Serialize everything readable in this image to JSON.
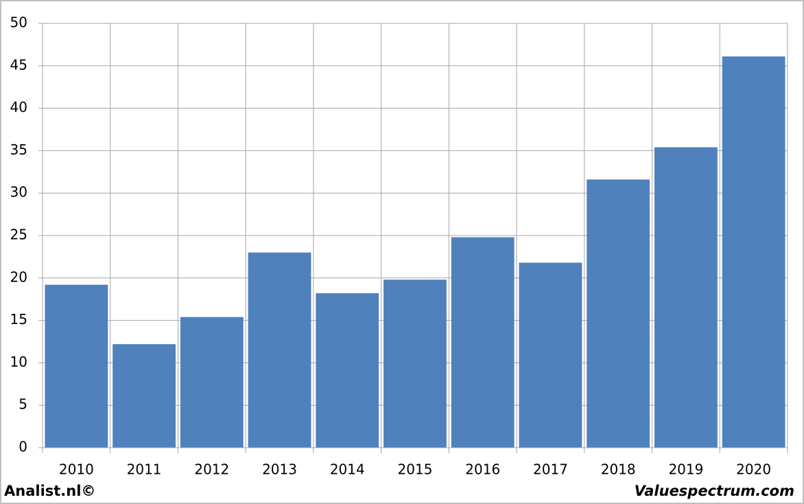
{
  "chart_data": {
    "type": "bar",
    "categories": [
      "2010",
      "2011",
      "2012",
      "2013",
      "2014",
      "2015",
      "2016",
      "2017",
      "2018",
      "2019",
      "2020"
    ],
    "values": [
      19.2,
      12.2,
      15.4,
      23.0,
      18.2,
      19.8,
      24.8,
      21.8,
      31.6,
      35.4,
      46.1
    ],
    "color": "#4f81bd",
    "ylim": [
      0,
      50
    ],
    "yticks": [
      0,
      5,
      10,
      15,
      20,
      25,
      30,
      35,
      40,
      45,
      50
    ],
    "grid": true,
    "credits": [
      "Analist.nl©",
      "Valuespectrum.com"
    ]
  }
}
